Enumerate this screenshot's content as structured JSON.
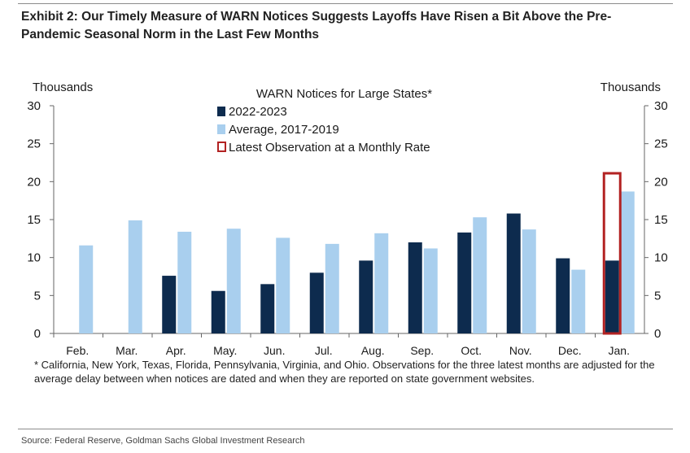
{
  "header": {
    "title": "Exhibit 2: Our Timely Measure of WARN Notices Suggests Layoffs Have Risen a Bit Above the Pre-Pandemic Seasonal Norm in the Last Few Months"
  },
  "footnote": "* California, New York, Texas, Florida, Pennsylvania, Virginia, and Ohio. Observations for the three latest months are adjusted for the average delay between when notices are dated and when they are reported on state government websites.",
  "source": "Source: Federal Reserve, Goldman Sachs Global Investment Research",
  "colors": {
    "series_2022_2023": "#0d2b4e",
    "series_average": "#a9cfee",
    "latest_outline": "#b22222",
    "axis": "#666666"
  },
  "chart_data": {
    "type": "bar",
    "title": "WARN Notices for Large States*",
    "ylabel_left": "Thousands",
    "ylabel_right": "Thousands",
    "ylim": [
      0,
      30
    ],
    "yticks": [
      "0",
      "5",
      "10",
      "15",
      "20",
      "25",
      "30"
    ],
    "grid": false,
    "legend_position": "top-center",
    "categories": [
      "Feb.",
      "Mar.",
      "Apr.",
      "May.",
      "Jun.",
      "Jul.",
      "Aug.",
      "Sep.",
      "Oct.",
      "Nov.",
      "Dec.",
      "Jan."
    ],
    "series": [
      {
        "name": "2022-2023",
        "values": [
          null,
          null,
          7.6,
          5.6,
          6.5,
          8.0,
          9.6,
          12.0,
          13.3,
          15.8,
          9.9,
          9.6
        ]
      },
      {
        "name": "Average, 2017-2019",
        "values": [
          11.6,
          14.9,
          13.4,
          13.8,
          12.6,
          11.8,
          13.2,
          11.2,
          15.3,
          13.7,
          8.4,
          18.7
        ]
      }
    ],
    "latest_observation": {
      "name": "Latest Observation at a Monthly Rate",
      "category": "Jan.",
      "value": 21.1
    }
  }
}
